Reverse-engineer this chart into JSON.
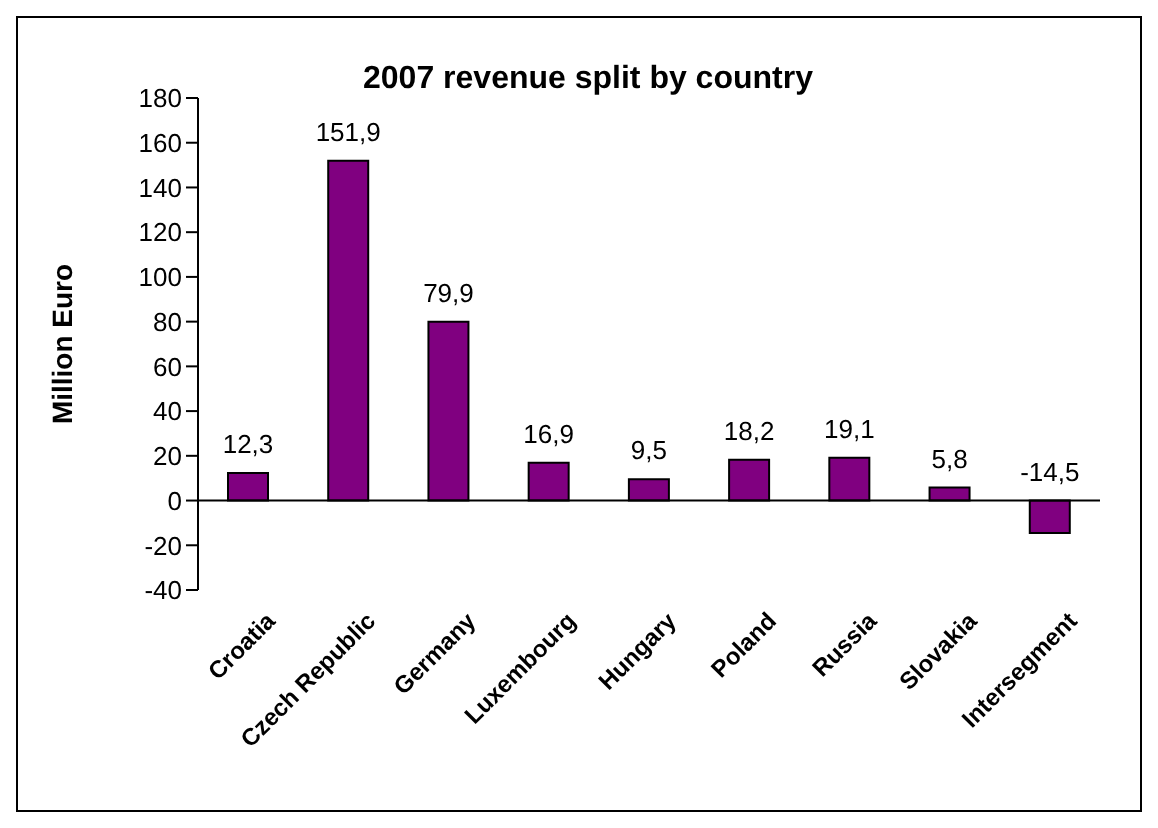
{
  "chart_data": {
    "type": "bar",
    "title": "2007 revenue split by country",
    "ylabel": "Million Euro",
    "categories": [
      "Croatia",
      "Czech Republic",
      "Germany",
      "Luxembourg",
      "Hungary",
      "Poland",
      "Russia",
      "Slovakia",
      "Intersegment"
    ],
    "values": [
      12.3,
      151.9,
      79.9,
      16.9,
      9.5,
      18.2,
      19.1,
      5.8,
      -14.5
    ],
    "value_labels": [
      "12,3",
      "151,9",
      "79,9",
      "16,9",
      "9,5",
      "18,2",
      "19,1",
      "5,8",
      "-14,5"
    ],
    "color": "#800080",
    "ylim": [
      -40,
      180
    ],
    "yticks": [
      -40,
      -20,
      0,
      20,
      40,
      60,
      80,
      100,
      120,
      140,
      160,
      180
    ],
    "legend": false
  }
}
